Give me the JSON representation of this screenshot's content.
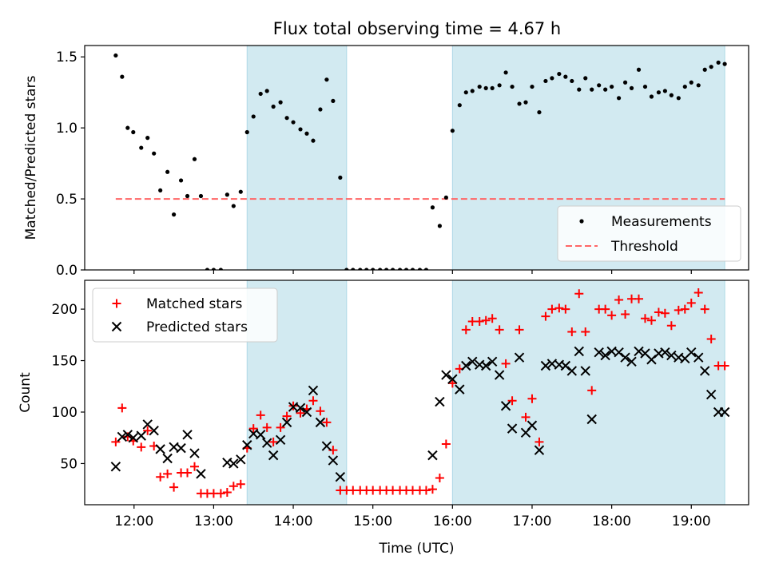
{
  "title": "Flux total observing time = 4.67 h",
  "colors": {
    "band": "#add8e6",
    "threshold": "#ff6666",
    "matched": "#ff0000",
    "predicted": "#000000",
    "measurement": "#000000"
  },
  "chart_data": [
    {
      "type": "scatter",
      "panel": "top",
      "ylabel": "Matched/Predicted stars",
      "xlim_hours": [
        11.38,
        19.72
      ],
      "ylim": [
        0,
        1.58
      ],
      "yticks": [
        0.0,
        0.5,
        1.0,
        1.5
      ],
      "ytick_labels": [
        "0.0",
        "0.5",
        "1.0",
        "1.5"
      ],
      "highlight_bands_hours": [
        [
          13.42,
          14.67
        ],
        [
          16.0,
          19.42
        ]
      ],
      "threshold": {
        "name": "Threshold",
        "value": 0.5,
        "x_range_hours": [
          11.77,
          19.42
        ]
      },
      "legend": {
        "placement": "lower right",
        "entries": [
          "Measurements",
          "Threshold"
        ]
      },
      "series": [
        {
          "name": "Measurements",
          "marker": "dot",
          "x_hours": [
            11.77,
            11.85,
            11.92,
            11.99,
            12.09,
            12.17,
            12.25,
            12.33,
            12.42,
            12.5,
            12.59,
            12.67,
            12.76,
            12.84,
            12.92,
            13.0,
            13.09,
            13.17,
            13.25,
            13.34,
            13.42,
            13.5,
            13.59,
            13.67,
            13.75,
            13.84,
            13.92,
            14.0,
            14.09,
            14.17,
            14.25,
            14.34,
            14.42,
            14.5,
            14.59,
            14.67,
            14.75,
            14.84,
            14.92,
            15.0,
            15.09,
            15.17,
            15.25,
            15.34,
            15.42,
            15.5,
            15.59,
            15.67,
            15.75,
            15.84,
            15.92,
            16.0,
            16.09,
            16.17,
            16.25,
            16.34,
            16.42,
            16.5,
            16.59,
            16.67,
            16.75,
            16.84,
            16.92,
            17.0,
            17.09,
            17.17,
            17.25,
            17.34,
            17.42,
            17.5,
            17.59,
            17.67,
            17.75,
            17.84,
            17.92,
            18.0,
            18.09,
            18.17,
            18.25,
            18.34,
            18.42,
            18.5,
            18.59,
            18.67,
            18.75,
            18.84,
            18.92,
            19.0,
            19.09,
            19.17,
            19.25,
            19.34,
            19.42
          ],
          "y": [
            1.51,
            1.36,
            1.0,
            0.97,
            0.86,
            0.93,
            0.82,
            0.56,
            0.69,
            0.39,
            0.63,
            0.52,
            0.78,
            0.52,
            0.0,
            0.0,
            0.0,
            0.53,
            0.45,
            0.55,
            0.97,
            1.08,
            1.24,
            1.26,
            1.15,
            1.18,
            1.07,
            1.04,
            0.99,
            0.96,
            0.91,
            1.13,
            1.34,
            1.19,
            0.65,
            0.0,
            0.0,
            0.0,
            0.0,
            0.0,
            0.0,
            0.0,
            0.0,
            0.0,
            0.0,
            0.0,
            0.0,
            0.0,
            0.44,
            0.31,
            0.51,
            0.98,
            1.16,
            1.25,
            1.26,
            1.29,
            1.28,
            1.28,
            1.3,
            1.39,
            1.29,
            1.17,
            1.18,
            1.29,
            1.11,
            1.33,
            1.35,
            1.38,
            1.36,
            1.33,
            1.27,
            1.35,
            1.27,
            1.3,
            1.27,
            1.29,
            1.21,
            1.32,
            1.28,
            1.41,
            1.29,
            1.22,
            1.25,
            1.26,
            1.23,
            1.21,
            1.29,
            1.32,
            1.3,
            1.41,
            1.43,
            1.46,
            1.45
          ]
        }
      ]
    },
    {
      "type": "scatter",
      "panel": "bottom",
      "xlabel": "Time (UTC)",
      "ylabel": "Count",
      "xlim_hours": [
        11.38,
        19.72
      ],
      "ylim": [
        10,
        228
      ],
      "xticks_hours": [
        12,
        13,
        14,
        15,
        16,
        17,
        18,
        19
      ],
      "xtick_labels": [
        "12:00",
        "13:00",
        "14:00",
        "15:00",
        "16:00",
        "17:00",
        "18:00",
        "19:00"
      ],
      "yticks": [
        50,
        100,
        150,
        200
      ],
      "ytick_labels": [
        "50",
        "100",
        "150",
        "200"
      ],
      "highlight_bands_hours": [
        [
          13.42,
          14.67
        ],
        [
          16.0,
          19.42
        ]
      ],
      "legend": {
        "placement": "upper left",
        "entries": [
          "Matched stars",
          "Predicted stars"
        ]
      },
      "series": [
        {
          "name": "Matched stars",
          "marker": "plus",
          "x_hours": [
            11.77,
            11.85,
            11.92,
            11.99,
            12.09,
            12.17,
            12.25,
            12.33,
            12.42,
            12.5,
            12.59,
            12.67,
            12.76,
            12.84,
            12.92,
            13.0,
            13.09,
            13.17,
            13.25,
            13.34,
            13.42,
            13.5,
            13.59,
            13.67,
            13.75,
            13.84,
            13.92,
            14.0,
            14.09,
            14.17,
            14.25,
            14.34,
            14.42,
            14.5,
            14.59,
            14.67,
            14.75,
            14.84,
            14.92,
            15.0,
            15.09,
            15.17,
            15.25,
            15.34,
            15.42,
            15.5,
            15.59,
            15.67,
            15.75,
            15.84,
            15.92,
            16.0,
            16.09,
            16.17,
            16.25,
            16.34,
            16.42,
            16.5,
            16.59,
            16.67,
            16.75,
            16.84,
            16.92,
            17.0,
            17.09,
            17.17,
            17.25,
            17.34,
            17.42,
            17.5,
            17.59,
            17.67,
            17.75,
            17.84,
            17.92,
            18.0,
            18.09,
            18.17,
            18.25,
            18.34,
            18.42,
            18.5,
            18.59,
            18.67,
            18.75,
            18.84,
            18.92,
            19.0,
            19.09,
            19.17,
            19.25,
            19.34,
            19.42
          ],
          "y": [
            71,
            104,
            76,
            72,
            66,
            82,
            67,
            37,
            40,
            27,
            41,
            41,
            47,
            21,
            21,
            21,
            21,
            22,
            28,
            30,
            65,
            84,
            97,
            85,
            71,
            85,
            96,
            106,
            99,
            103,
            111,
            101,
            90,
            63,
            24,
            24,
            24,
            24,
            24,
            24,
            24,
            24,
            24,
            24,
            24,
            24,
            24,
            24,
            25,
            36,
            69,
            128,
            142,
            180,
            188,
            188,
            189,
            191,
            180,
            147,
            111,
            180,
            95,
            113,
            71,
            193,
            200,
            201,
            200,
            178,
            215,
            178,
            121,
            200,
            200,
            194,
            209,
            195,
            210,
            210,
            191,
            189,
            197,
            196,
            184,
            199,
            200,
            206,
            216,
            200,
            171,
            145,
            145
          ]
        },
        {
          "name": "Predicted stars",
          "marker": "x",
          "x_hours": [
            11.77,
            11.85,
            11.92,
            11.99,
            12.09,
            12.17,
            12.25,
            12.33,
            12.42,
            12.5,
            12.59,
            12.67,
            12.76,
            12.84,
            12.92,
            13.0,
            13.09,
            13.17,
            13.25,
            13.34,
            13.42,
            13.5,
            13.59,
            13.67,
            13.75,
            13.84,
            13.92,
            14.0,
            14.09,
            14.17,
            14.25,
            14.34,
            14.42,
            14.5,
            14.59,
            14.67,
            14.75,
            14.84,
            14.92,
            15.0,
            15.09,
            15.17,
            15.25,
            15.34,
            15.42,
            15.5,
            15.59,
            15.67,
            15.75,
            15.84,
            15.92,
            16.0,
            16.09,
            16.17,
            16.25,
            16.34,
            16.42,
            16.5,
            16.59,
            16.67,
            16.75,
            16.84,
            16.92,
            17.0,
            17.09,
            17.17,
            17.25,
            17.34,
            17.42,
            17.5,
            17.59,
            17.67,
            17.75,
            17.84,
            17.92,
            18.0,
            18.09,
            18.17,
            18.25,
            18.34,
            18.42,
            18.5,
            18.59,
            18.67,
            18.75,
            18.84,
            18.92,
            19.0,
            19.09,
            19.17,
            19.25,
            19.34,
            19.42
          ],
          "y": [
            47,
            76,
            78,
            75,
            77,
            88,
            82,
            64,
            55,
            66,
            65,
            78,
            60,
            40,
            null,
            null,
            null,
            51,
            50,
            54,
            68,
            79,
            78,
            70,
            58,
            73,
            90,
            105,
            104,
            100,
            121,
            90,
            67,
            53,
            37,
            null,
            null,
            null,
            null,
            null,
            null,
            null,
            null,
            null,
            null,
            null,
            null,
            null,
            58,
            110,
            136,
            132,
            122,
            145,
            149,
            146,
            145,
            149,
            136,
            106,
            84,
            153,
            80,
            87,
            63,
            145,
            147,
            146,
            145,
            140,
            159,
            140,
            93,
            158,
            155,
            159,
            158,
            153,
            149,
            159,
            157,
            151,
            157,
            158,
            155,
            153,
            152,
            158,
            153,
            140,
            117,
            100,
            100
          ]
        }
      ]
    }
  ]
}
